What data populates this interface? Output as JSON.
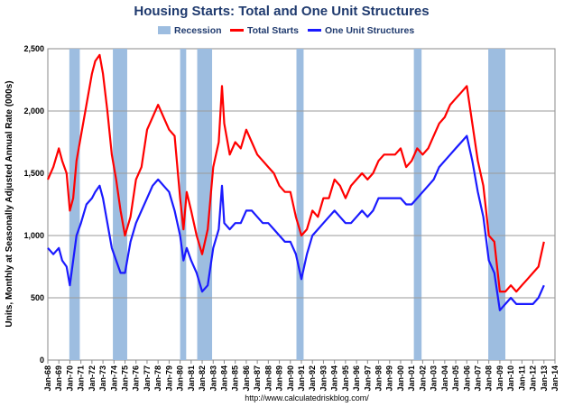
{
  "chart_data": {
    "type": "line",
    "title": "Housing Starts: Total and One Unit Structures",
    "ylabel": "Units, Monthly at Seasonally Adjusted Annual Rate (000s)",
    "xlabel": "",
    "source": "http://www.calculatedriskblog.com/",
    "ylim": [
      0,
      2500
    ],
    "xlim": [
      1968.0,
      2014.0
    ],
    "y_ticks": [
      "0",
      "500",
      "1,000",
      "1,500",
      "2,000",
      "2,500"
    ],
    "y_tick_values": [
      0,
      500,
      1000,
      1500,
      2000,
      2500
    ],
    "x_tick_labels": [
      "Jan-68",
      "Jan-69",
      "Jan-70",
      "Jan-71",
      "Jan-72",
      "Jan-73",
      "Jan-74",
      "Jan-75",
      "Jan-76",
      "Jan-77",
      "Jan-78",
      "Jan-79",
      "Jan-80",
      "Jan-81",
      "Jan-82",
      "Jan-83",
      "Jan-84",
      "Jan-85",
      "Jan-86",
      "Jan-87",
      "Jan-88",
      "Jan-89",
      "Jan-90",
      "Jan-91",
      "Jan-92",
      "Jan-93",
      "Jan-94",
      "Jan-95",
      "Jan-96",
      "Jan-97",
      "Jan-98",
      "Jan-99",
      "Jan-00",
      "Jan-01",
      "Jan-02",
      "Jan-03",
      "Jan-04",
      "Jan-05",
      "Jan-06",
      "Jan-07",
      "Jan-08",
      "Jan-09",
      "Jan-10",
      "Jan-11",
      "Jan-12",
      "Jan-13",
      "Jan-14"
    ],
    "grid": true,
    "legend_position": "top-center",
    "legend": [
      "Recession",
      "Total Starts",
      "One Unit Structures"
    ],
    "colors": {
      "recession": "#9dbde0",
      "total": "#ff0000",
      "single": "#1a1aff"
    },
    "recessions": [
      {
        "start": 1969.95,
        "end": 1970.9
      },
      {
        "start": 1973.9,
        "end": 1975.2
      },
      {
        "start": 1980.0,
        "end": 1980.55
      },
      {
        "start": 1981.55,
        "end": 1982.9
      },
      {
        "start": 1990.55,
        "end": 1991.2
      },
      {
        "start": 2001.2,
        "end": 2001.9
      },
      {
        "start": 2007.95,
        "end": 2009.5
      }
    ],
    "series": [
      {
        "name": "Total Starts",
        "x": [
          1968.0,
          1968.5,
          1969.0,
          1969.3,
          1969.7,
          1970.0,
          1970.3,
          1970.6,
          1971.0,
          1971.5,
          1972.0,
          1972.3,
          1972.7,
          1973.0,
          1973.4,
          1973.8,
          1974.2,
          1974.6,
          1975.0,
          1975.5,
          1976.0,
          1976.5,
          1977.0,
          1977.5,
          1978.0,
          1978.5,
          1979.0,
          1979.5,
          1980.0,
          1980.3,
          1980.6,
          1981.0,
          1981.5,
          1982.0,
          1982.5,
          1983.0,
          1983.5,
          1983.8,
          1984.0,
          1984.5,
          1985.0,
          1985.5,
          1986.0,
          1986.5,
          1987.0,
          1987.5,
          1988.0,
          1988.5,
          1989.0,
          1989.5,
          1990.0,
          1990.5,
          1991.0,
          1991.5,
          1992.0,
          1992.5,
          1993.0,
          1993.5,
          1994.0,
          1994.5,
          1995.0,
          1995.5,
          1996.0,
          1996.5,
          1997.0,
          1997.5,
          1998.0,
          1998.5,
          1999.0,
          1999.5,
          2000.0,
          2000.5,
          2001.0,
          2001.5,
          2002.0,
          2002.5,
          2003.0,
          2003.5,
          2004.0,
          2004.5,
          2005.0,
          2005.5,
          2006.0,
          2006.5,
          2007.0,
          2007.5,
          2008.0,
          2008.5,
          2009.0,
          2009.5,
          2010.0,
          2010.5,
          2011.0,
          2011.5,
          2012.0,
          2012.5,
          2013.0
        ],
        "values": [
          1450,
          1550,
          1700,
          1600,
          1500,
          1200,
          1300,
          1600,
          1800,
          2050,
          2300,
          2400,
          2450,
          2300,
          2000,
          1650,
          1450,
          1200,
          1000,
          1150,
          1450,
          1550,
          1850,
          1950,
          2050,
          1950,
          1850,
          1800,
          1300,
          1050,
          1350,
          1200,
          1000,
          850,
          1050,
          1550,
          1750,
          2200,
          1900,
          1650,
          1750,
          1700,
          1850,
          1750,
          1650,
          1600,
          1550,
          1500,
          1400,
          1350,
          1350,
          1150,
          1000,
          1050,
          1200,
          1150,
          1300,
          1300,
          1450,
          1400,
          1300,
          1400,
          1450,
          1500,
          1450,
          1500,
          1600,
          1650,
          1650,
          1650,
          1700,
          1550,
          1600,
          1700,
          1650,
          1700,
          1800,
          1900,
          1950,
          2050,
          2100,
          2150,
          2200,
          1900,
          1600,
          1400,
          1000,
          950,
          550,
          550,
          600,
          550,
          600,
          650,
          700,
          750,
          950
        ]
      },
      {
        "name": "One Unit Structures",
        "x": [
          1968.0,
          1968.5,
          1969.0,
          1969.3,
          1969.7,
          1970.0,
          1970.3,
          1970.6,
          1971.0,
          1971.5,
          1972.0,
          1972.3,
          1972.7,
          1973.0,
          1973.4,
          1973.8,
          1974.2,
          1974.6,
          1975.0,
          1975.5,
          1976.0,
          1976.5,
          1977.0,
          1977.5,
          1978.0,
          1978.5,
          1979.0,
          1979.5,
          1980.0,
          1980.3,
          1980.6,
          1981.0,
          1981.5,
          1982.0,
          1982.5,
          1983.0,
          1983.5,
          1983.8,
          1984.0,
          1984.5,
          1985.0,
          1985.5,
          1986.0,
          1986.5,
          1987.0,
          1987.5,
          1988.0,
          1988.5,
          1989.0,
          1989.5,
          1990.0,
          1990.5,
          1991.0,
          1991.5,
          1992.0,
          1992.5,
          1993.0,
          1993.5,
          1994.0,
          1994.5,
          1995.0,
          1995.5,
          1996.0,
          1996.5,
          1997.0,
          1997.5,
          1998.0,
          1998.5,
          1999.0,
          1999.5,
          2000.0,
          2000.5,
          2001.0,
          2001.5,
          2002.0,
          2002.5,
          2003.0,
          2003.5,
          2004.0,
          2004.5,
          2005.0,
          2005.5,
          2006.0,
          2006.5,
          2007.0,
          2007.5,
          2008.0,
          2008.5,
          2009.0,
          2009.5,
          2010.0,
          2010.5,
          2011.0,
          2011.5,
          2012.0,
          2012.5,
          2013.0
        ],
        "values": [
          900,
          850,
          900,
          800,
          750,
          600,
          800,
          1000,
          1100,
          1250,
          1300,
          1350,
          1400,
          1300,
          1100,
          900,
          800,
          700,
          700,
          950,
          1100,
          1200,
          1300,
          1400,
          1450,
          1400,
          1350,
          1200,
          1000,
          800,
          900,
          800,
          700,
          550,
          600,
          900,
          1050,
          1400,
          1100,
          1050,
          1100,
          1100,
          1200,
          1200,
          1150,
          1100,
          1100,
          1050,
          1000,
          950,
          950,
          850,
          650,
          850,
          1000,
          1050,
          1100,
          1150,
          1200,
          1150,
          1100,
          1100,
          1150,
          1200,
          1150,
          1200,
          1300,
          1300,
          1300,
          1300,
          1300,
          1250,
          1250,
          1300,
          1350,
          1400,
          1450,
          1550,
          1600,
          1650,
          1700,
          1750,
          1800,
          1600,
          1350,
          1150,
          800,
          700,
          400,
          450,
          500,
          450,
          450,
          450,
          450,
          500,
          600
        ]
      }
    ]
  }
}
